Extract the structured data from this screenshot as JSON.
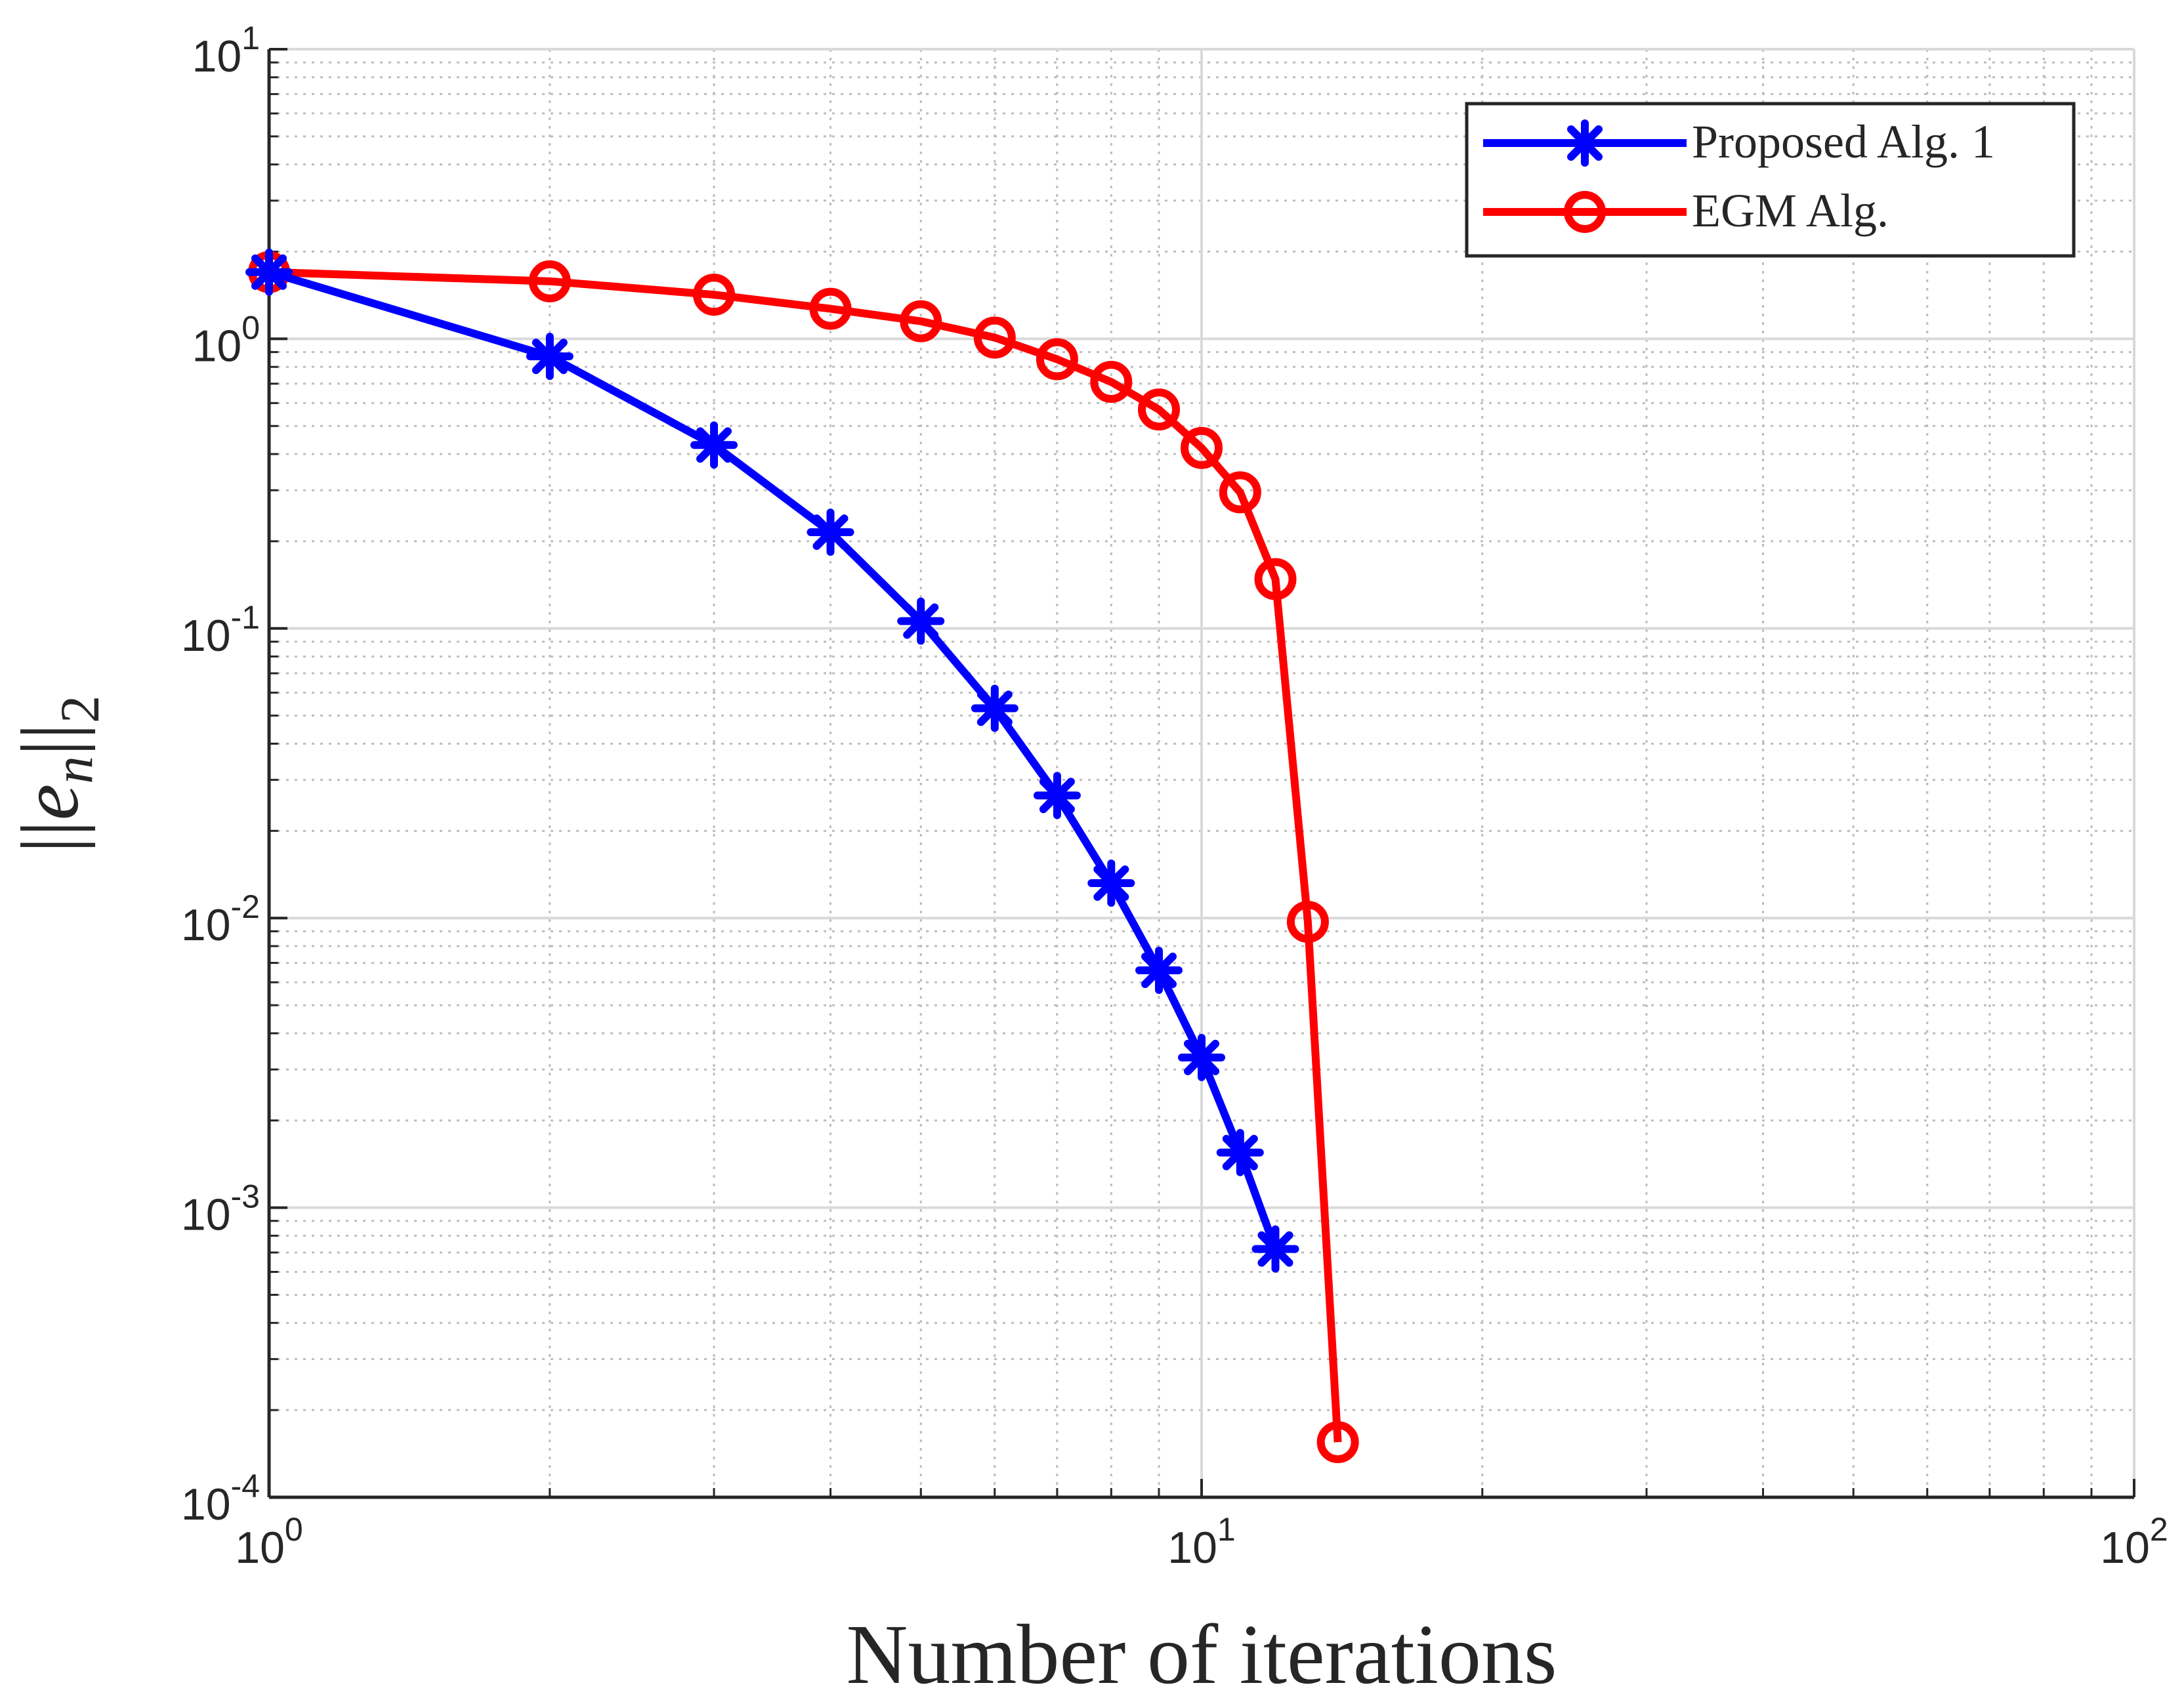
{
  "chart_data": {
    "type": "line",
    "xscale": "log",
    "yscale": "log",
    "xlim": [
      1,
      100
    ],
    "ylim": [
      0.0001,
      10
    ],
    "xlabel": "Number of iterations",
    "ylabel": "||e_n||_2",
    "ylabel_parts": {
      "open": "||",
      "var": "e",
      "sub": "n",
      "close": "||",
      "outer_sub": "2"
    },
    "grid": true,
    "minor_grid": true,
    "legend_position": "top-right",
    "x_ticks": [
      {
        "value": 1,
        "base": "10",
        "exp": "0"
      },
      {
        "value": 10,
        "base": "10",
        "exp": "1"
      },
      {
        "value": 100,
        "base": "10",
        "exp": "2"
      }
    ],
    "y_ticks": [
      {
        "value": 10,
        "base": "10",
        "exp": "1"
      },
      {
        "value": 1,
        "base": "10",
        "exp": "0"
      },
      {
        "value": 0.1,
        "base": "10",
        "exp": "-1"
      },
      {
        "value": 0.01,
        "base": "10",
        "exp": "-2"
      },
      {
        "value": 0.001,
        "base": "10",
        "exp": "-3"
      },
      {
        "value": 0.0001,
        "base": "10",
        "exp": "-4"
      }
    ],
    "series": [
      {
        "name": "Proposed Alg. 1",
        "color": "#0000ff",
        "marker": "asterisk",
        "x": [
          1,
          2,
          3,
          4,
          5,
          6,
          7,
          8,
          9,
          10,
          11,
          12
        ],
        "y": [
          1.7,
          0.87,
          0.43,
          0.215,
          0.106,
          0.053,
          0.0265,
          0.0132,
          0.0066,
          0.0033,
          0.00155,
          0.00072
        ]
      },
      {
        "name": "EGM Alg.",
        "color": "#ff0000",
        "marker": "circle",
        "x": [
          1,
          2,
          3,
          4,
          5,
          6,
          7,
          8,
          9,
          10,
          11,
          12,
          13,
          14
        ],
        "y": [
          1.7,
          1.58,
          1.42,
          1.27,
          1.15,
          1.01,
          0.85,
          0.71,
          0.57,
          0.42,
          0.295,
          0.148,
          0.0097,
          0.000155
        ]
      }
    ]
  }
}
